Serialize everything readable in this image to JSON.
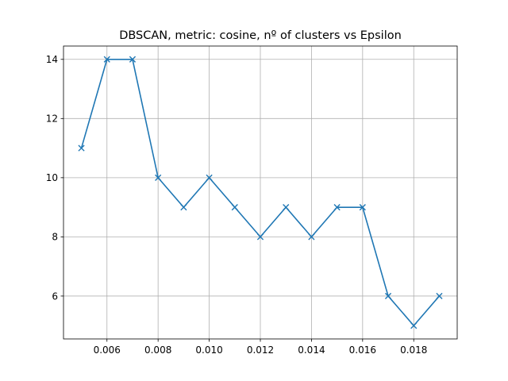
{
  "chart_data": {
    "type": "line",
    "title": "DBSCAN, metric: cosine, nº of clusters vs Epsilon",
    "xlabel": "",
    "ylabel": "",
    "grid": true,
    "marker": "x",
    "color": "#1f77b4",
    "x": [
      0.005,
      0.006,
      0.007,
      0.008,
      0.009,
      0.01,
      0.011,
      0.012,
      0.013,
      0.014,
      0.015,
      0.016,
      0.017,
      0.018,
      0.019
    ],
    "y": [
      11,
      14,
      14,
      10,
      9,
      10,
      9,
      8,
      9,
      8,
      9,
      9,
      6,
      5,
      6
    ],
    "xlim": [
      0.0043,
      0.0197
    ],
    "ylim": [
      4.55,
      14.45
    ],
    "xticks": [
      "0.006",
      "0.008",
      "0.010",
      "0.012",
      "0.014",
      "0.016",
      "0.018"
    ],
    "yticks": [
      "6",
      "8",
      "10",
      "12",
      "14"
    ]
  }
}
